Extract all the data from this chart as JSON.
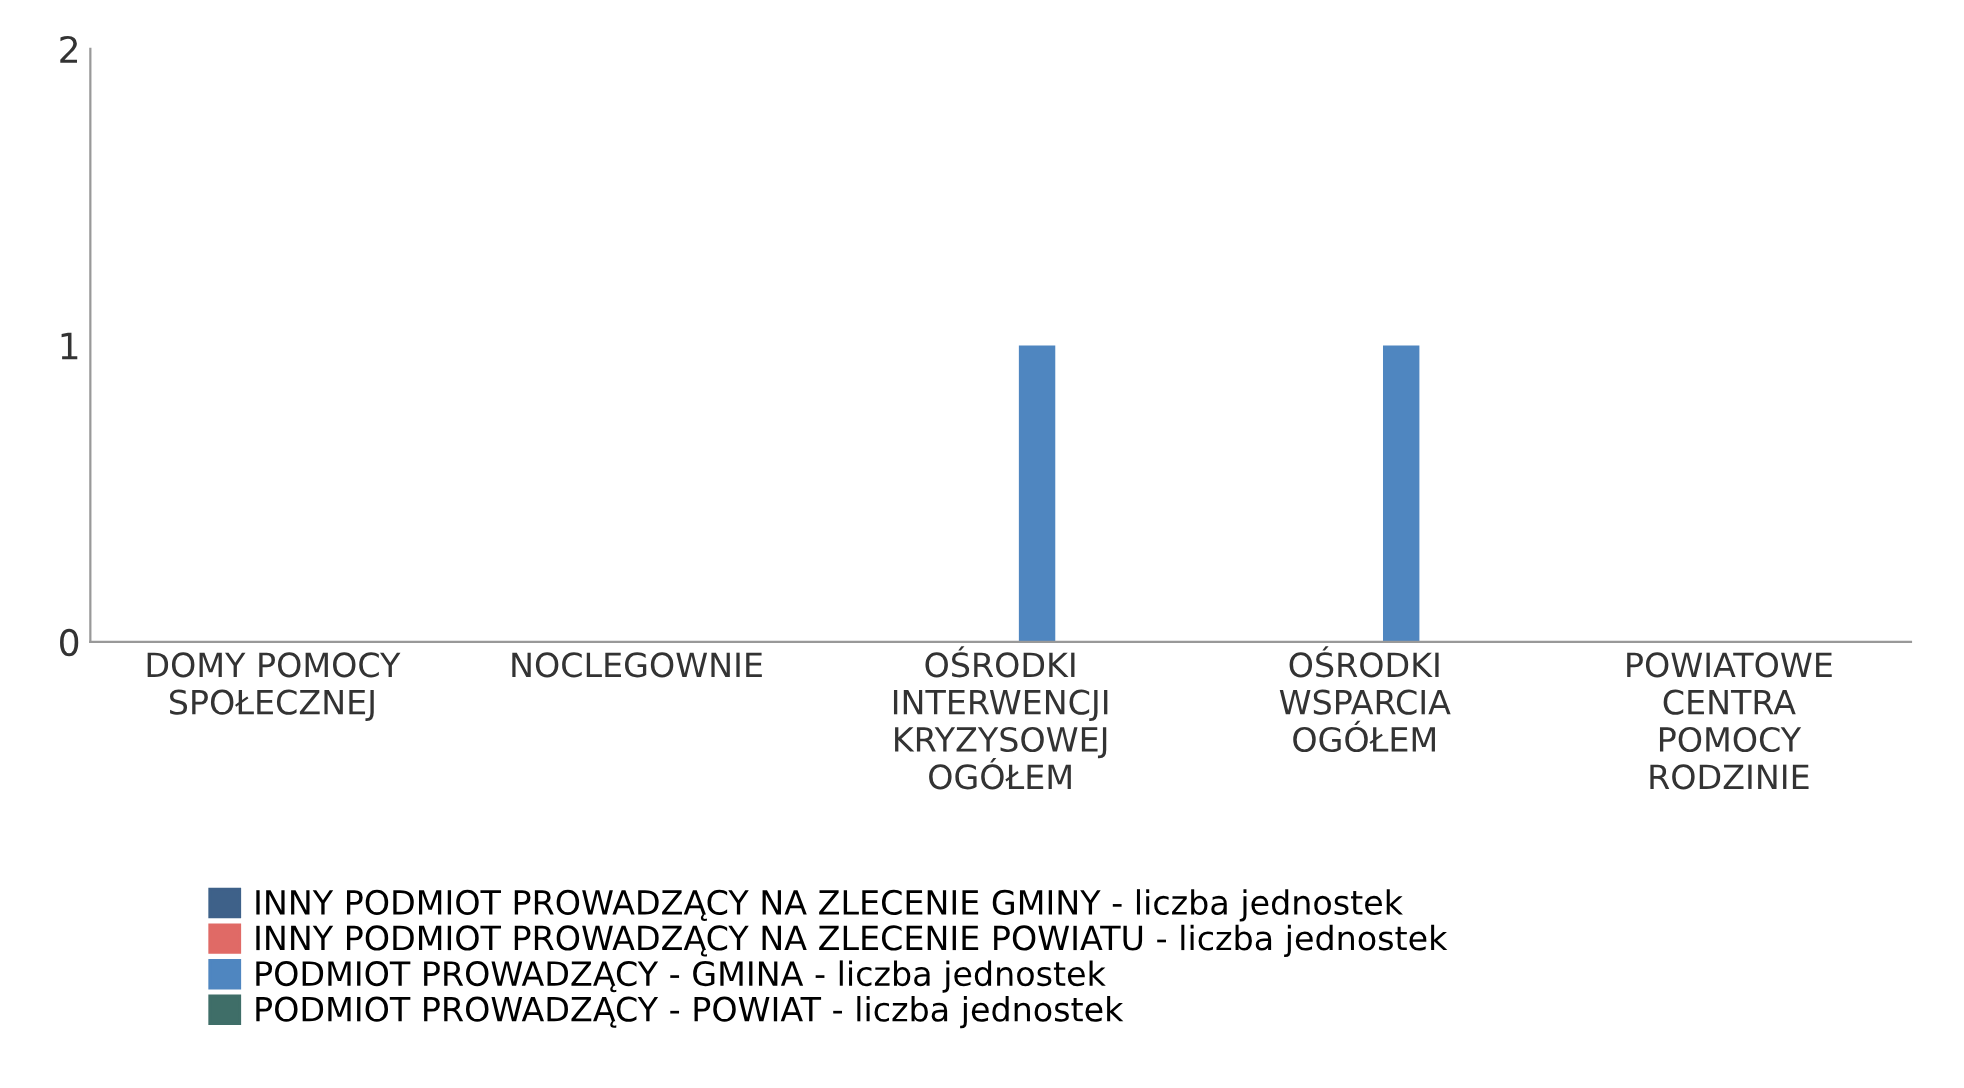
{
  "chart_data": {
    "type": "bar",
    "categories": [
      "DOMY POMOCY\nSPOŁECZNEJ",
      "NOCLEGOWNIE",
      "OŚRODKI\nINTERWENCJI\nKRYZYSOWEJ\nOGÓŁEM",
      "OŚRODKI\nWSPARCIA\nOGÓŁEM",
      "POWIATOWE\nCENTRA\nPOMOCY\nRODZINIE"
    ],
    "series": [
      {
        "name": "INNY PODMIOT PROWADZĄCY NA ZLECENIE GMINY - liczba jednostek",
        "color": "#3e6189",
        "values": [
          0,
          0,
          0,
          0,
          0
        ]
      },
      {
        "name": "INNY PODMIOT PROWADZĄCY NA ZLECENIE POWIATU - liczba jednostek",
        "color": "#e06a66",
        "values": [
          0,
          0,
          0,
          0,
          0
        ]
      },
      {
        "name": "PODMIOT PROWADZĄCY - GMINA - liczba jednostek",
        "color": "#4f86c0",
        "values": [
          0,
          0,
          1,
          1,
          0
        ]
      },
      {
        "name": "PODMIOT PROWADZĄCY - POWIAT - liczba jednostek",
        "color": "#3f6e68",
        "values": [
          0,
          0,
          0,
          0,
          0
        ]
      }
    ],
    "ylim": [
      0,
      2
    ],
    "yticks": [
      0,
      1,
      2
    ],
    "grid": false,
    "legend": "bottom"
  }
}
